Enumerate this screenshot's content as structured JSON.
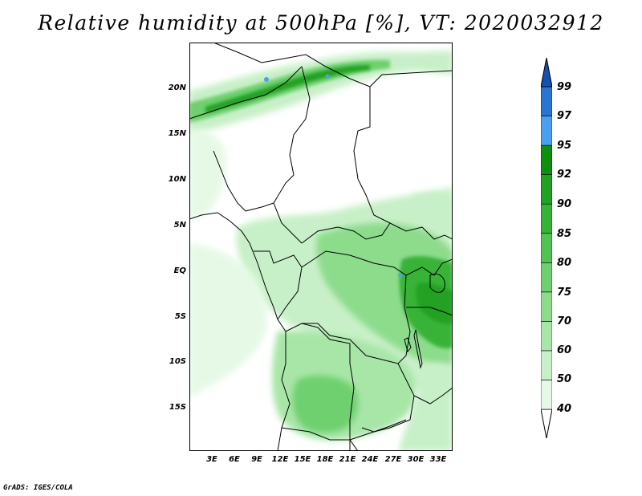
{
  "title": "Relative humidity at 500hPa [%], VT: 2020032912",
  "footer": "GrADS: IGES/COLA",
  "map": {
    "variable": "Relative humidity",
    "level": "500hPa",
    "units": "%",
    "valid_time": "2020032912",
    "lat_labels": [
      "20N",
      "15N",
      "10N",
      "5N",
      "EQ",
      "5S",
      "10S",
      "15S"
    ],
    "lon_labels": [
      "3E",
      "6E",
      "9E",
      "12E",
      "15E",
      "18E",
      "21E",
      "24E",
      "27E",
      "30E",
      "33E"
    ]
  },
  "colorbar": {
    "levels": [
      "40",
      "50",
      "60",
      "70",
      "75",
      "80",
      "85",
      "90",
      "92",
      "95",
      "97",
      "99"
    ],
    "colors": [
      "#ffffff",
      "#e6f9e6",
      "#c8f0c8",
      "#a8e6a8",
      "#8cdc8c",
      "#6ed06e",
      "#50c350",
      "#37b337",
      "#21a121",
      "#0e8f0e",
      "#4aa0ee",
      "#2a74d4",
      "#1450b4"
    ]
  }
}
